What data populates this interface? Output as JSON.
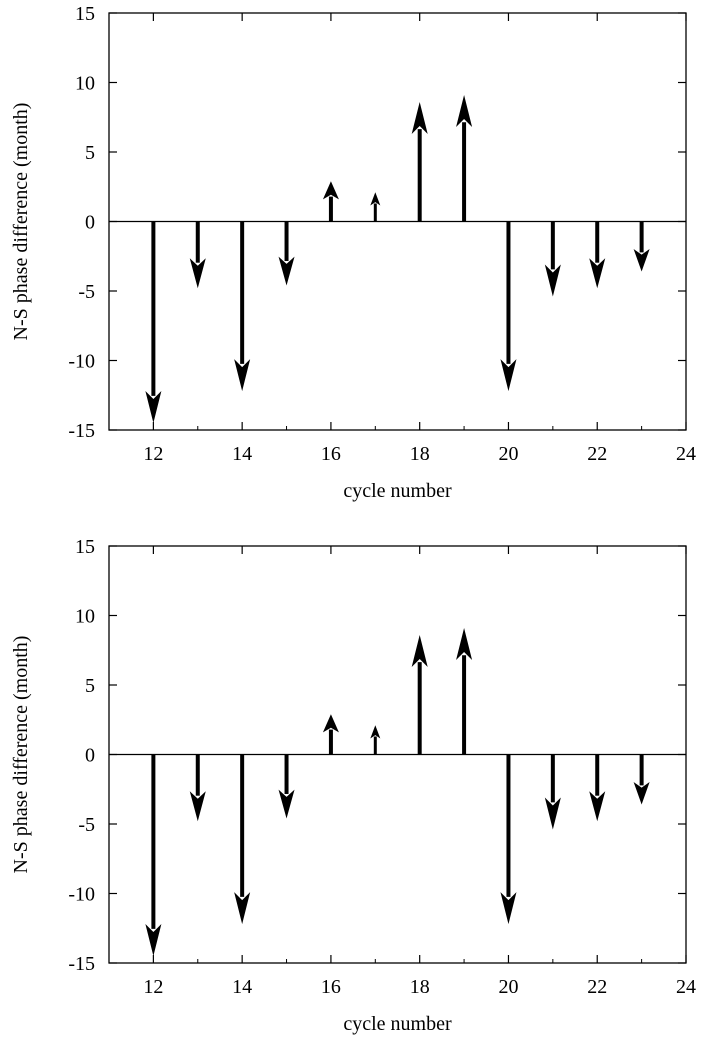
{
  "chart_data": [
    {
      "type": "arrow",
      "xlabel": "cycle number",
      "ylabel": "N-S phase difference (month)",
      "xlim": [
        11,
        24
      ],
      "ylim": [
        -15,
        15
      ],
      "xticks": [
        "12",
        "14",
        "16",
        "18",
        "20",
        "22",
        "24"
      ],
      "yticks": [
        "15",
        "10",
        "5",
        "0",
        "-5",
        "-10",
        "-15"
      ],
      "grid": false,
      "baseline": 0,
      "x": [
        12,
        13,
        14,
        15,
        16,
        17,
        18,
        19,
        20,
        21,
        22,
        23
      ],
      "values": [
        -14.5,
        -4.8,
        -12.2,
        -4.6,
        2.9,
        2.1,
        8.6,
        9.1,
        -12.2,
        -5.4,
        -4.8,
        -3.6
      ]
    },
    {
      "type": "arrow",
      "xlabel": "cycle number",
      "ylabel": "N-S phase difference (month)",
      "xlim": [
        11,
        24
      ],
      "ylim": [
        -15,
        15
      ],
      "xticks": [
        "12",
        "14",
        "16",
        "18",
        "20",
        "22",
        "24"
      ],
      "yticks": [
        "15",
        "10",
        "5",
        "0",
        "-5",
        "-10",
        "-15"
      ],
      "grid": false,
      "baseline": 0,
      "x": [
        12,
        13,
        14,
        15,
        16,
        17,
        18,
        19,
        20,
        21,
        22,
        23
      ],
      "values": [
        -14.5,
        -4.8,
        -12.2,
        -4.6,
        2.9,
        2.1,
        8.6,
        9.1,
        -12.2,
        -5.4,
        -4.8,
        -3.6
      ]
    }
  ]
}
